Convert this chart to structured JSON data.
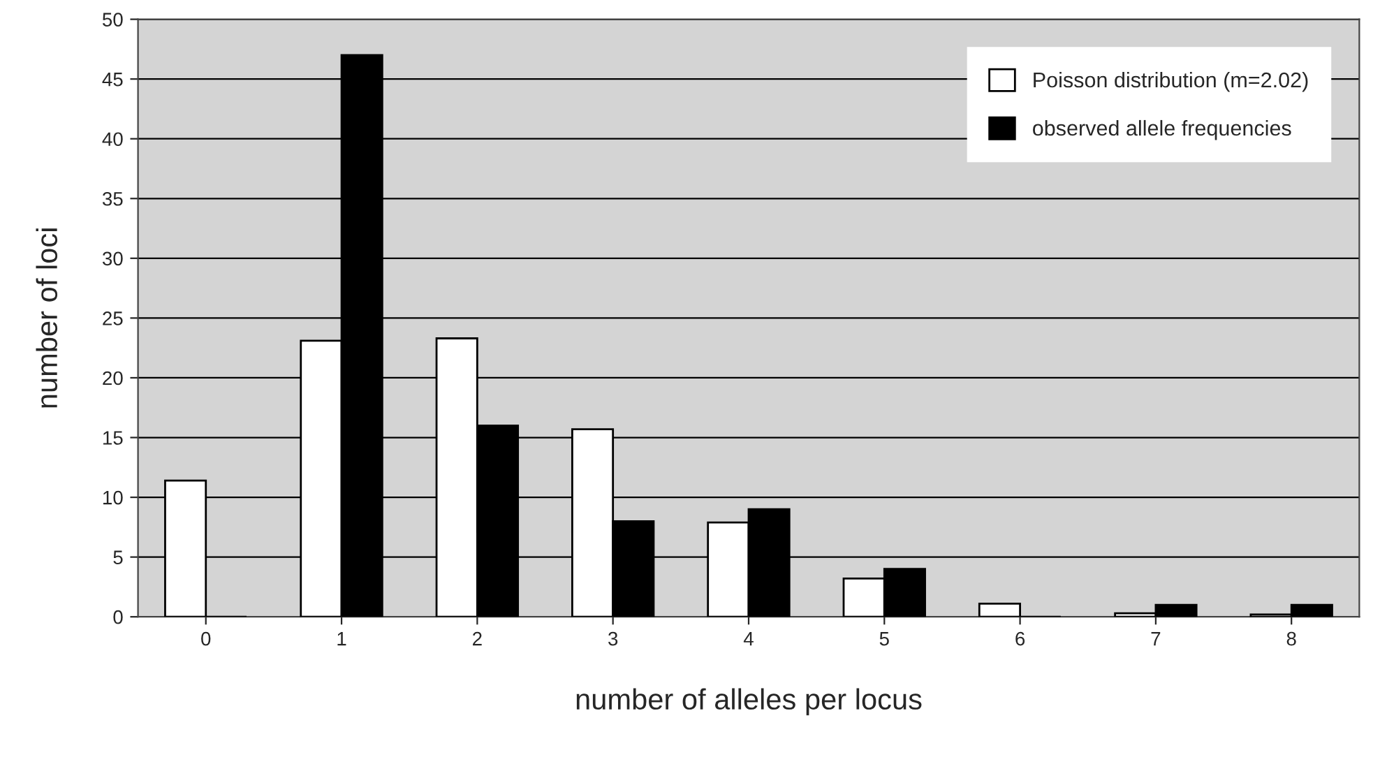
{
  "chart_data": {
    "type": "bar",
    "xlabel": "number of alleles per locus",
    "ylabel": "number of loci",
    "categories": [
      "0",
      "1",
      "2",
      "3",
      "4",
      "5",
      "6",
      "7",
      "8"
    ],
    "series": [
      {
        "name": "Poisson distribution (m=2.02)",
        "color": "#ffffff",
        "values": [
          11.4,
          23.1,
          23.3,
          15.7,
          7.9,
          3.2,
          1.1,
          0.3,
          0.2
        ]
      },
      {
        "name": "observed allele frequencies",
        "color": "#000000",
        "values": [
          0,
          47,
          16,
          8,
          9,
          4,
          0,
          1,
          1
        ]
      }
    ],
    "ylim": [
      0,
      50
    ],
    "yticks": [
      0,
      5,
      10,
      15,
      20,
      25,
      30,
      35,
      40,
      45,
      50
    ],
    "grid": "y",
    "legend": "top right"
  }
}
